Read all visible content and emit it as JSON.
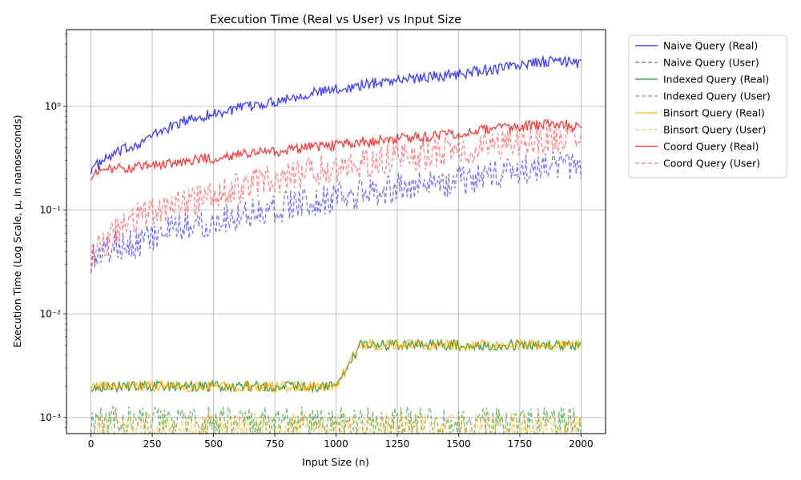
{
  "chart_data": {
    "type": "line",
    "title": "Execution Time (Real vs User) vs Input Size",
    "xlabel": "Input Size (n)",
    "ylabel": "Execution Time (Log Scale, μ, in nanoseconds)",
    "xlim": [
      -100,
      2100
    ],
    "ylim": [
      0.0007,
      5.5
    ],
    "yscale": "log",
    "grid": true,
    "legend_position": "outside-top-right",
    "x_ticks": [
      0,
      250,
      500,
      750,
      1000,
      1250,
      1500,
      1750,
      2000
    ],
    "x_tick_labels": [
      "0",
      "250",
      "500",
      "750",
      "1000",
      "1250",
      "1500",
      "1750",
      "2000"
    ],
    "y_ticks": [
      0.001,
      0.01,
      0.1,
      1
    ],
    "y_tick_labels": [
      "10⁻³",
      "10⁻²",
      "10⁻¹",
      "10⁰"
    ],
    "x": [
      0,
      100,
      200,
      300,
      400,
      500,
      600,
      700,
      800,
      900,
      1000,
      1100,
      1200,
      1300,
      1400,
      1500,
      1600,
      1700,
      1800,
      1900,
      2000
    ],
    "series": [
      {
        "name": "Naive Query (Real)",
        "color": "#0000ee",
        "dash": "solid",
        "opacity": 0.72,
        "values": [
          0.25,
          0.35,
          0.45,
          0.6,
          0.75,
          0.85,
          0.95,
          1.05,
          1.2,
          1.35,
          1.45,
          1.6,
          1.75,
          1.85,
          1.95,
          2.05,
          2.2,
          2.4,
          2.6,
          2.75,
          2.6
        ]
      },
      {
        "name": "Naive Query (User)",
        "color": "#0000ee",
        "dash": "dashed",
        "opacity": 0.5,
        "values": [
          0.035,
          0.045,
          0.05,
          0.06,
          0.07,
          0.08,
          0.09,
          0.1,
          0.11,
          0.12,
          0.13,
          0.14,
          0.16,
          0.17,
          0.18,
          0.19,
          0.21,
          0.23,
          0.25,
          0.26,
          0.25
        ]
      },
      {
        "name": "Indexed Query (Real)",
        "color": "#008000",
        "dash": "solid",
        "opacity": 0.72,
        "values": [
          0.002,
          0.002,
          0.002,
          0.002,
          0.002,
          0.002,
          0.002,
          0.002,
          0.002,
          0.002,
          0.002,
          0.005,
          0.005,
          0.005,
          0.005,
          0.005,
          0.005,
          0.005,
          0.005,
          0.005,
          0.005
        ]
      },
      {
        "name": "Indexed Query (User)",
        "color": "#008000",
        "dash": "dashed",
        "opacity": 0.5,
        "values": [
          0.0009,
          0.0009,
          0.0009,
          0.0009,
          0.0009,
          0.0009,
          0.0009,
          0.0009,
          0.0009,
          0.0009,
          0.0009,
          0.0009,
          0.0009,
          0.0009,
          0.0009,
          0.0009,
          0.0009,
          0.0009,
          0.0009,
          0.0009,
          0.0009
        ]
      },
      {
        "name": "Binsort Query (Real)",
        "color": "#ffa500",
        "dash": "solid",
        "opacity": 0.72,
        "values": [
          0.002,
          0.002,
          0.002,
          0.002,
          0.002,
          0.002,
          0.002,
          0.002,
          0.002,
          0.002,
          0.002,
          0.005,
          0.005,
          0.005,
          0.005,
          0.005,
          0.005,
          0.005,
          0.005,
          0.005,
          0.005
        ]
      },
      {
        "name": "Binsort Query (User)",
        "color": "#ffa500",
        "dash": "dashed",
        "opacity": 0.5,
        "values": [
          0.0008,
          0.0008,
          0.0008,
          0.0008,
          0.0008,
          0.0008,
          0.0008,
          0.0008,
          0.0008,
          0.0008,
          0.0008,
          0.0008,
          0.0008,
          0.0008,
          0.0008,
          0.0008,
          0.0008,
          0.0008,
          0.0008,
          0.0008,
          0.0008
        ]
      },
      {
        "name": "Coord Query (Real)",
        "color": "#ee0000",
        "dash": "solid",
        "opacity": 0.72,
        "values": [
          0.22,
          0.25,
          0.26,
          0.28,
          0.3,
          0.32,
          0.34,
          0.36,
          0.38,
          0.4,
          0.42,
          0.45,
          0.48,
          0.5,
          0.52,
          0.55,
          0.6,
          0.62,
          0.65,
          0.67,
          0.65
        ]
      },
      {
        "name": "Coord Query (User)",
        "color": "#ff3333",
        "dash": "dashed",
        "opacity": 0.55,
        "values": [
          0.035,
          0.06,
          0.09,
          0.1,
          0.12,
          0.14,
          0.16,
          0.19,
          0.21,
          0.24,
          0.26,
          0.28,
          0.31,
          0.33,
          0.35,
          0.38,
          0.41,
          0.44,
          0.47,
          0.5,
          0.49
        ]
      }
    ]
  }
}
